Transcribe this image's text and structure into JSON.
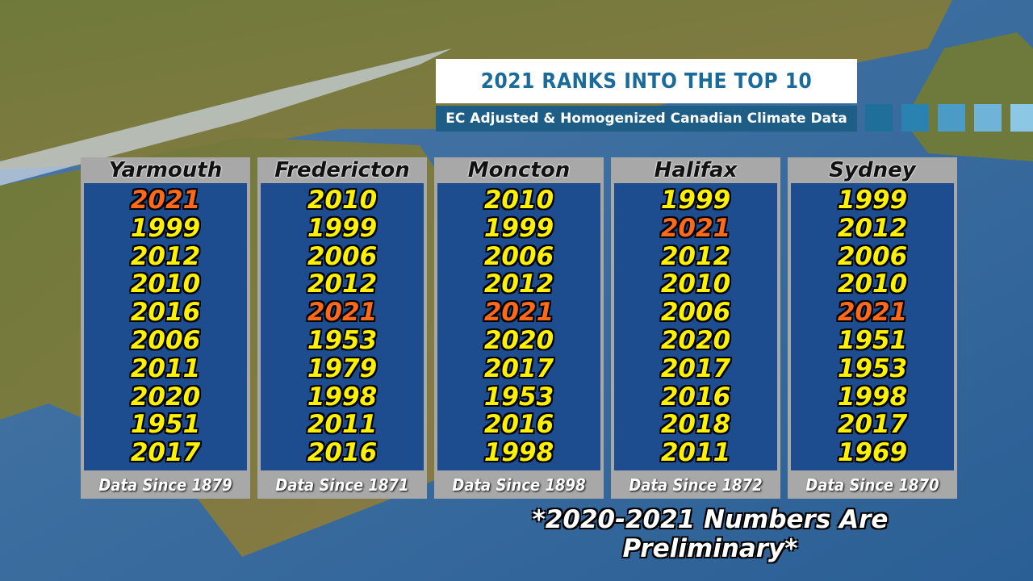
{
  "header": {
    "title": "2021 RANKS INTO THE TOP 10",
    "subtitle": "EC Adjusted & Homogenized Canadian Climate Data"
  },
  "highlight": {
    "year": "2021",
    "color": "#ff6a1a"
  },
  "year_color": "#fff200",
  "columns": [
    {
      "name": "Yarmouth",
      "years": [
        "2021",
        "1999",
        "2012",
        "2010",
        "2016",
        "2006",
        "2011",
        "2020",
        "1951",
        "2017"
      ],
      "note": "Data Since 1879"
    },
    {
      "name": "Fredericton",
      "years": [
        "2010",
        "1999",
        "2006",
        "2012",
        "2021",
        "1953",
        "1979",
        "1998",
        "2011",
        "2016"
      ],
      "note": "Data Since 1871"
    },
    {
      "name": "Moncton",
      "years": [
        "2010",
        "1999",
        "2006",
        "2012",
        "2021",
        "2020",
        "2017",
        "1953",
        "2016",
        "1998"
      ],
      "note": "Data Since 1898"
    },
    {
      "name": "Halifax",
      "years": [
        "1999",
        "2021",
        "2012",
        "2010",
        "2006",
        "2020",
        "2017",
        "2016",
        "2018",
        "2011"
      ],
      "note": "Data Since 1872"
    },
    {
      "name": "Sydney",
      "years": [
        "1999",
        "2012",
        "2006",
        "2010",
        "2021",
        "1951",
        "1953",
        "1998",
        "2017",
        "1969"
      ],
      "note": "Data Since 1870"
    }
  ],
  "footnote": "*2020-2021 Numbers Are Preliminary*"
}
